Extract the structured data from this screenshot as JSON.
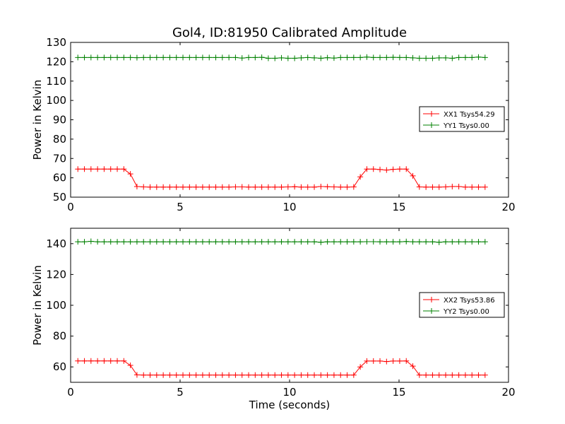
{
  "title": "Gol4, ID:81950 Calibrated Amplitude",
  "xlabel": "Time (seconds)",
  "chart_data": [
    {
      "type": "line",
      "title": "Gol4, ID:81950 Calibrated Amplitude",
      "xlabel": "",
      "ylabel": "Power in Kelvin",
      "xlim": [
        0,
        20
      ],
      "ylim": [
        50,
        130
      ],
      "xticks": [
        "0",
        "5",
        "10",
        "15",
        "20"
      ],
      "yticks": [
        "50",
        "60",
        "70",
        "80",
        "90",
        "100",
        "110",
        "120",
        "130"
      ],
      "legend_position": "center-right",
      "x": [
        0.33,
        0.63,
        0.93,
        1.23,
        1.53,
        1.83,
        2.13,
        2.43,
        2.73,
        3.03,
        3.33,
        3.63,
        3.93,
        4.23,
        4.53,
        4.83,
        5.13,
        5.43,
        5.73,
        6.03,
        6.33,
        6.63,
        6.93,
        7.23,
        7.53,
        7.83,
        8.13,
        8.43,
        8.73,
        9.03,
        9.33,
        9.63,
        9.93,
        10.23,
        10.53,
        10.83,
        11.13,
        11.43,
        11.73,
        12.03,
        12.33,
        12.63,
        12.93,
        13.23,
        13.53,
        13.83,
        14.13,
        14.43,
        14.73,
        15.03,
        15.33,
        15.63,
        15.93,
        16.23,
        16.53,
        16.83,
        17.13,
        17.43,
        17.73,
        18.03,
        18.33,
        18.63,
        18.93
      ],
      "series": [
        {
          "name": "XX1 Tsys54.29",
          "color": "#ff0000",
          "values": [
            64.5,
            64.5,
            64.5,
            64.5,
            64.5,
            64.5,
            64.5,
            64.5,
            62.0,
            55.5,
            55.3,
            55.2,
            55.2,
            55.2,
            55.2,
            55.2,
            55.2,
            55.2,
            55.2,
            55.2,
            55.2,
            55.2,
            55.2,
            55.2,
            55.3,
            55.3,
            55.2,
            55.2,
            55.2,
            55.2,
            55.2,
            55.2,
            55.3,
            55.4,
            55.2,
            55.2,
            55.2,
            55.5,
            55.4,
            55.3,
            55.2,
            55.2,
            55.3,
            60.5,
            64.5,
            64.5,
            64.3,
            64.0,
            64.4,
            64.5,
            64.5,
            61.0,
            55.3,
            55.2,
            55.2,
            55.2,
            55.3,
            55.5,
            55.5,
            55.2,
            55.2,
            55.2,
            55.2
          ]
        },
        {
          "name": "YY1 Tsys0.00",
          "color": "#008000",
          "values": [
            122.2,
            122.2,
            122.2,
            122.2,
            122.2,
            122.2,
            122.2,
            122.2,
            122.2,
            122.1,
            122.2,
            122.2,
            122.2,
            122.2,
            122.2,
            122.2,
            122.2,
            122.2,
            122.2,
            122.2,
            122.2,
            122.2,
            122.2,
            122.2,
            122.2,
            121.9,
            122.2,
            122.2,
            122.3,
            121.8,
            121.8,
            122.0,
            121.8,
            121.8,
            122.0,
            122.2,
            122.0,
            121.8,
            122.1,
            121.9,
            122.2,
            122.2,
            122.2,
            122.2,
            122.4,
            122.2,
            122.2,
            122.2,
            122.3,
            122.2,
            122.2,
            122.0,
            121.8,
            121.8,
            121.8,
            122.0,
            122.0,
            121.8,
            122.2,
            122.2,
            122.2,
            122.4,
            122.2
          ]
        }
      ]
    },
    {
      "type": "line",
      "title": "",
      "xlabel": "Time (seconds)",
      "ylabel": "Power in Kelvin",
      "xlim": [
        0,
        20
      ],
      "ylim": [
        50,
        150
      ],
      "xticks": [
        "0",
        "5",
        "10",
        "15",
        "20"
      ],
      "yticks": [
        "60",
        "80",
        "100",
        "120",
        "140"
      ],
      "legend_position": "center-right",
      "x": [
        0.33,
        0.63,
        0.93,
        1.23,
        1.53,
        1.83,
        2.13,
        2.43,
        2.73,
        3.03,
        3.33,
        3.63,
        3.93,
        4.23,
        4.53,
        4.83,
        5.13,
        5.43,
        5.73,
        6.03,
        6.33,
        6.63,
        6.93,
        7.23,
        7.53,
        7.83,
        8.13,
        8.43,
        8.73,
        9.03,
        9.33,
        9.63,
        9.93,
        10.23,
        10.53,
        10.83,
        11.13,
        11.43,
        11.73,
        12.03,
        12.33,
        12.63,
        12.93,
        13.23,
        13.53,
        13.83,
        14.13,
        14.43,
        14.73,
        15.03,
        15.33,
        15.63,
        15.93,
        16.23,
        16.53,
        16.83,
        17.13,
        17.43,
        17.73,
        18.03,
        18.33,
        18.63,
        18.93
      ],
      "series": [
        {
          "name": "XX2 Tsys53.86",
          "color": "#ff0000",
          "values": [
            63.9,
            63.9,
            63.9,
            63.9,
            63.9,
            63.9,
            63.9,
            63.9,
            61.0,
            54.8,
            54.7,
            54.7,
            54.7,
            54.7,
            54.7,
            54.7,
            54.7,
            54.7,
            54.7,
            54.7,
            54.7,
            54.7,
            54.7,
            54.7,
            54.7,
            54.7,
            54.7,
            54.7,
            54.7,
            54.7,
            54.7,
            54.7,
            54.7,
            54.7,
            54.7,
            54.7,
            54.7,
            54.7,
            54.7,
            54.7,
            54.7,
            54.7,
            54.7,
            60.0,
            63.8,
            63.8,
            63.8,
            63.5,
            63.8,
            63.8,
            63.9,
            60.5,
            54.7,
            54.7,
            54.7,
            54.7,
            54.7,
            54.7,
            54.7,
            54.7,
            54.7,
            54.7,
            54.7
          ]
        },
        {
          "name": "YY2 Tsys0.00",
          "color": "#008000",
          "values": [
            141.2,
            141.2,
            141.5,
            141.2,
            141.2,
            141.2,
            141.2,
            141.2,
            141.2,
            141.2,
            141.2,
            141.2,
            141.2,
            141.2,
            141.2,
            141.2,
            141.2,
            141.2,
            141.2,
            141.2,
            141.2,
            141.2,
            141.2,
            141.2,
            141.2,
            141.2,
            141.2,
            141.2,
            141.2,
            141.2,
            141.2,
            141.2,
            141.2,
            141.2,
            141.2,
            141.2,
            141.2,
            140.9,
            141.2,
            141.2,
            141.2,
            141.2,
            141.2,
            141.2,
            141.3,
            141.3,
            141.2,
            141.2,
            141.2,
            141.2,
            141.4,
            141.2,
            141.2,
            141.2,
            141.2,
            140.9,
            141.2,
            141.2,
            141.2,
            141.2,
            141.2,
            141.2,
            141.2
          ]
        }
      ]
    }
  ]
}
